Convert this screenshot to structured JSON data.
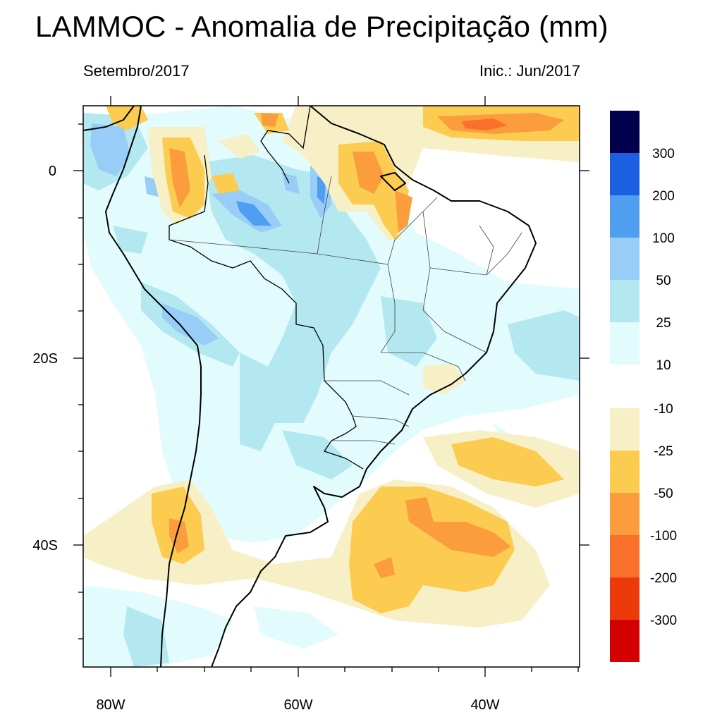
{
  "header": {
    "title": "LAMMOC - Anomalia de Precipitação (mm)",
    "subtitle_left": "Setembro/2017",
    "subtitle_right": "Inic.: Jun/2017"
  },
  "axes": {
    "x_ticks": [
      "80W",
      "60W",
      "40W"
    ],
    "y_ticks": [
      "0",
      "20S",
      "40S"
    ]
  },
  "colorbar": {
    "positive_labels": [
      "300",
      "200",
      "100",
      "50",
      "25",
      "10"
    ],
    "negative_labels": [
      "-10",
      "-25",
      "-50",
      "-100",
      "-200",
      "-300"
    ],
    "positive_colors": [
      "#00004c",
      "#1c5fe0",
      "#4f9ef0",
      "#98cdf7",
      "#b4e8f0",
      "#e2fbfd"
    ],
    "negative_colors": [
      "#f7efc6",
      "#fccc50",
      "#fb9d3c",
      "#f8702a",
      "#ec3a0a",
      "#d20000"
    ]
  }
}
